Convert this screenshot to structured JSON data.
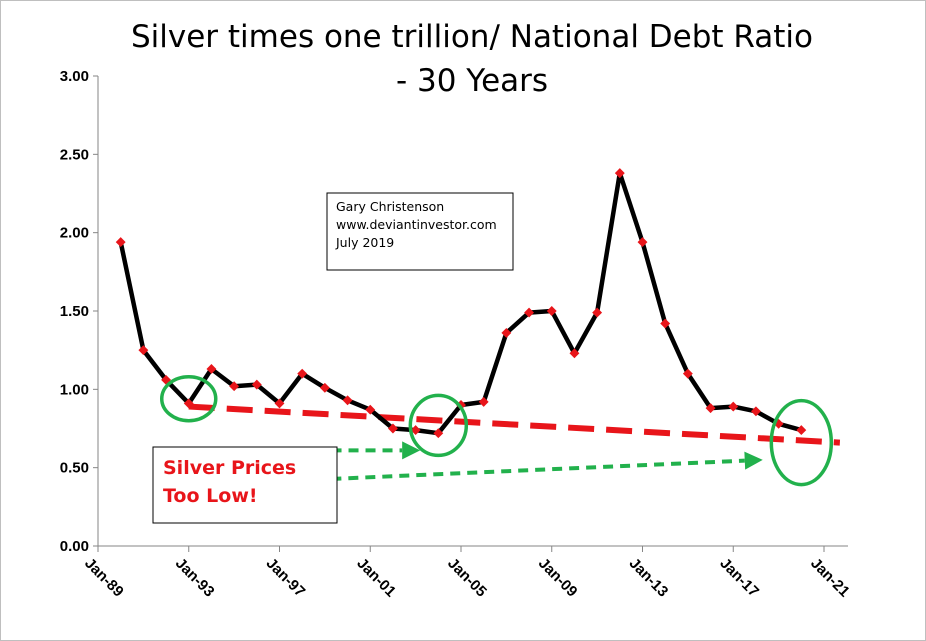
{
  "chart_data": {
    "type": "line",
    "title_line1": "Silver times one trillion/ National Debt Ratio",
    "title_line2": "- 30 Years",
    "x_tick_labels": [
      "Jan-89",
      "Jan-93",
      "Jan-97",
      "Jan-01",
      "Jan-05",
      "Jan-09",
      "Jan-13",
      "Jan-17",
      "Jan-21"
    ],
    "x_ticks_year": [
      1989,
      1993,
      1997,
      2001,
      2005,
      2009,
      2013,
      2017,
      2021
    ],
    "y_tick_labels": [
      "0.00",
      "0.50",
      "1.00",
      "1.50",
      "2.00",
      "2.50",
      "3.00"
    ],
    "y_ticks": [
      0,
      0.5,
      1.0,
      1.5,
      2.0,
      2.5,
      3.0
    ],
    "xlim": [
      1989,
      2022
    ],
    "ylim": [
      0,
      3
    ],
    "grid": false,
    "series": [
      {
        "line_color": "#000000",
        "marker_color": "#e8151a",
        "x": [
          1990.0,
          1991.0,
          1992.0,
          1993.0,
          1994.0,
          1995.0,
          1996.0,
          1997.0,
          1998.0,
          1999.0,
          2000.0,
          2001.0,
          2002.0,
          2003.0,
          2004.0,
          2005.0,
          2006.0,
          2007.0,
          2008.0,
          2009.0,
          2010.0,
          2011.0,
          2012.0,
          2013.0,
          2014.0,
          2015.0,
          2016.0,
          2017.0,
          2018.0,
          2019.0,
          2020.0
        ],
        "values": [
          1.94,
          1.25,
          1.06,
          0.91,
          1.13,
          1.02,
          1.03,
          0.91,
          1.1,
          1.01,
          0.93,
          0.87,
          0.75,
          0.74,
          0.72,
          0.9,
          0.92,
          1.36,
          1.49,
          1.5,
          1.23,
          1.49,
          2.38,
          1.94,
          1.42,
          1.1,
          0.88,
          0.89,
          0.86,
          0.78,
          0.74
        ]
      }
    ],
    "trendline": {
      "color": "#e8151a",
      "x": [
        1993.0,
        2021.7
      ],
      "values": [
        0.89,
        0.66
      ]
    },
    "annotation_box": [
      "Gary Christenson",
      "www.deviantinvestor.com",
      "July 2019"
    ],
    "callout_lines": [
      "Silver Prices",
      "Too Low!"
    ],
    "callout_color": "#e8151a",
    "highlight_color": "#22b14c",
    "highlight_circles": [
      {
        "x": 1993.0,
        "y": 0.94
      },
      {
        "x": 2004.0,
        "y": 0.77
      },
      {
        "x": 2020.0,
        "y": 0.66
      }
    ],
    "arrows": [
      {
        "from": [
          1991.8,
          0.61
        ],
        "to": [
          2003.2,
          0.61
        ]
      },
      {
        "from": [
          1991.8,
          0.38
        ],
        "to": [
          2018.3,
          0.55
        ]
      }
    ]
  }
}
